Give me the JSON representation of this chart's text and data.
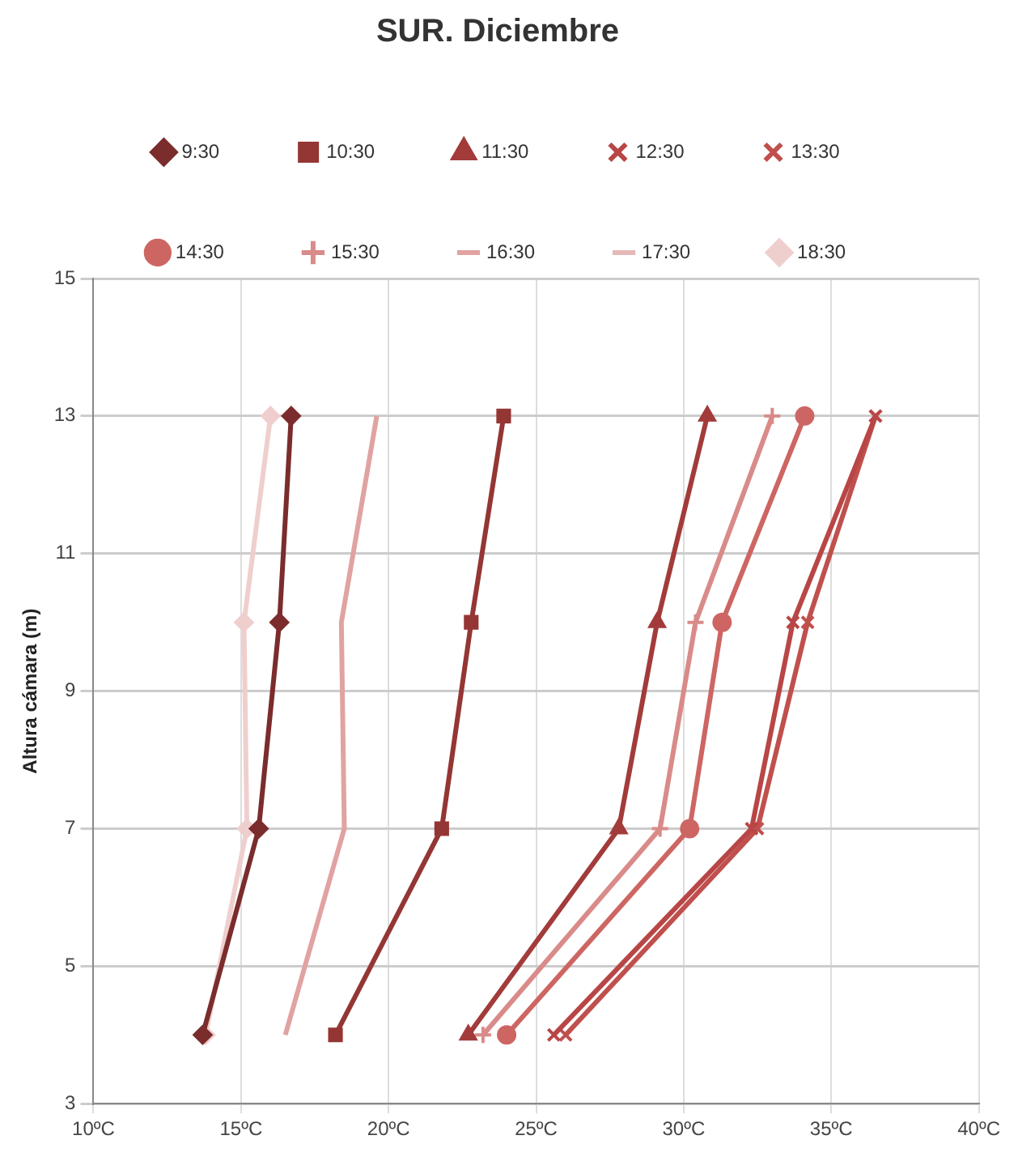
{
  "chart_data": {
    "type": "line",
    "title": "SUR. Diciembre",
    "ylabel": "Altura cámara (m)",
    "legend": "top",
    "grid": true,
    "line_style": "solid",
    "xlim": [
      10,
      40
    ],
    "xticks": [
      {
        "value": 10,
        "label": "10ºC"
      },
      {
        "value": 15,
        "label": "15ºC"
      },
      {
        "value": 20,
        "label": "20ºC"
      },
      {
        "value": 25,
        "label": "25ºC"
      },
      {
        "value": 30,
        "label": "30ºC"
      },
      {
        "value": 35,
        "label": "35ºC"
      },
      {
        "value": 40,
        "label": "40ºC"
      }
    ],
    "ylim": [
      3,
      15
    ],
    "yticks": [
      3,
      5,
      7,
      9,
      11,
      13,
      15
    ],
    "series": [
      {
        "name": "9:30",
        "color": "#7b2c2c",
        "marker": "diamond",
        "x": [
          13.7,
          15.6,
          16.3,
          16.7
        ],
        "values": [
          4,
          7,
          10,
          13
        ]
      },
      {
        "name": "10:30",
        "color": "#943634",
        "marker": "square",
        "x": [
          18.2,
          21.8,
          22.8,
          23.9
        ],
        "values": [
          4,
          7,
          10,
          13
        ]
      },
      {
        "name": "11:30",
        "color": "#a33b3b",
        "marker": "triangle",
        "x": [
          22.7,
          27.8,
          29.1,
          30.8
        ],
        "values": [
          4,
          7,
          10,
          13
        ]
      },
      {
        "name": "12:30",
        "color": "#b94646",
        "marker": "cross",
        "x": [
          25.6,
          32.3,
          33.7,
          36.5
        ],
        "values": [
          4,
          7,
          10,
          13
        ]
      },
      {
        "name": "13:30",
        "color": "#c0504d",
        "marker": "cross",
        "x": [
          26.0,
          32.5,
          34.2,
          36.5
        ],
        "values": [
          4,
          7,
          10,
          13
        ]
      },
      {
        "name": "14:30",
        "color": "#cd6663",
        "marker": "circle",
        "x": [
          24.0,
          30.2,
          31.3,
          34.1
        ],
        "values": [
          4,
          7,
          10,
          13
        ]
      },
      {
        "name": "15:30",
        "color": "#d98b89",
        "marker": "plus",
        "x": [
          23.2,
          29.2,
          30.4,
          33.0
        ],
        "values": [
          4,
          7,
          10,
          13
        ]
      },
      {
        "name": "16:30",
        "color": "#e0a3a1",
        "marker": "none",
        "x": [
          16.5,
          18.5,
          18.4,
          19.6
        ],
        "values": [
          4,
          7,
          10,
          13
        ]
      },
      {
        "name": "17:30",
        "color": "#e6b9b8",
        "marker": "none"
      },
      {
        "name": "18:30",
        "color": "#efcfce",
        "marker": "diamond",
        "x": [
          13.8,
          15.2,
          15.1,
          16.0
        ],
        "values": [
          4,
          7,
          10,
          13
        ]
      }
    ]
  }
}
